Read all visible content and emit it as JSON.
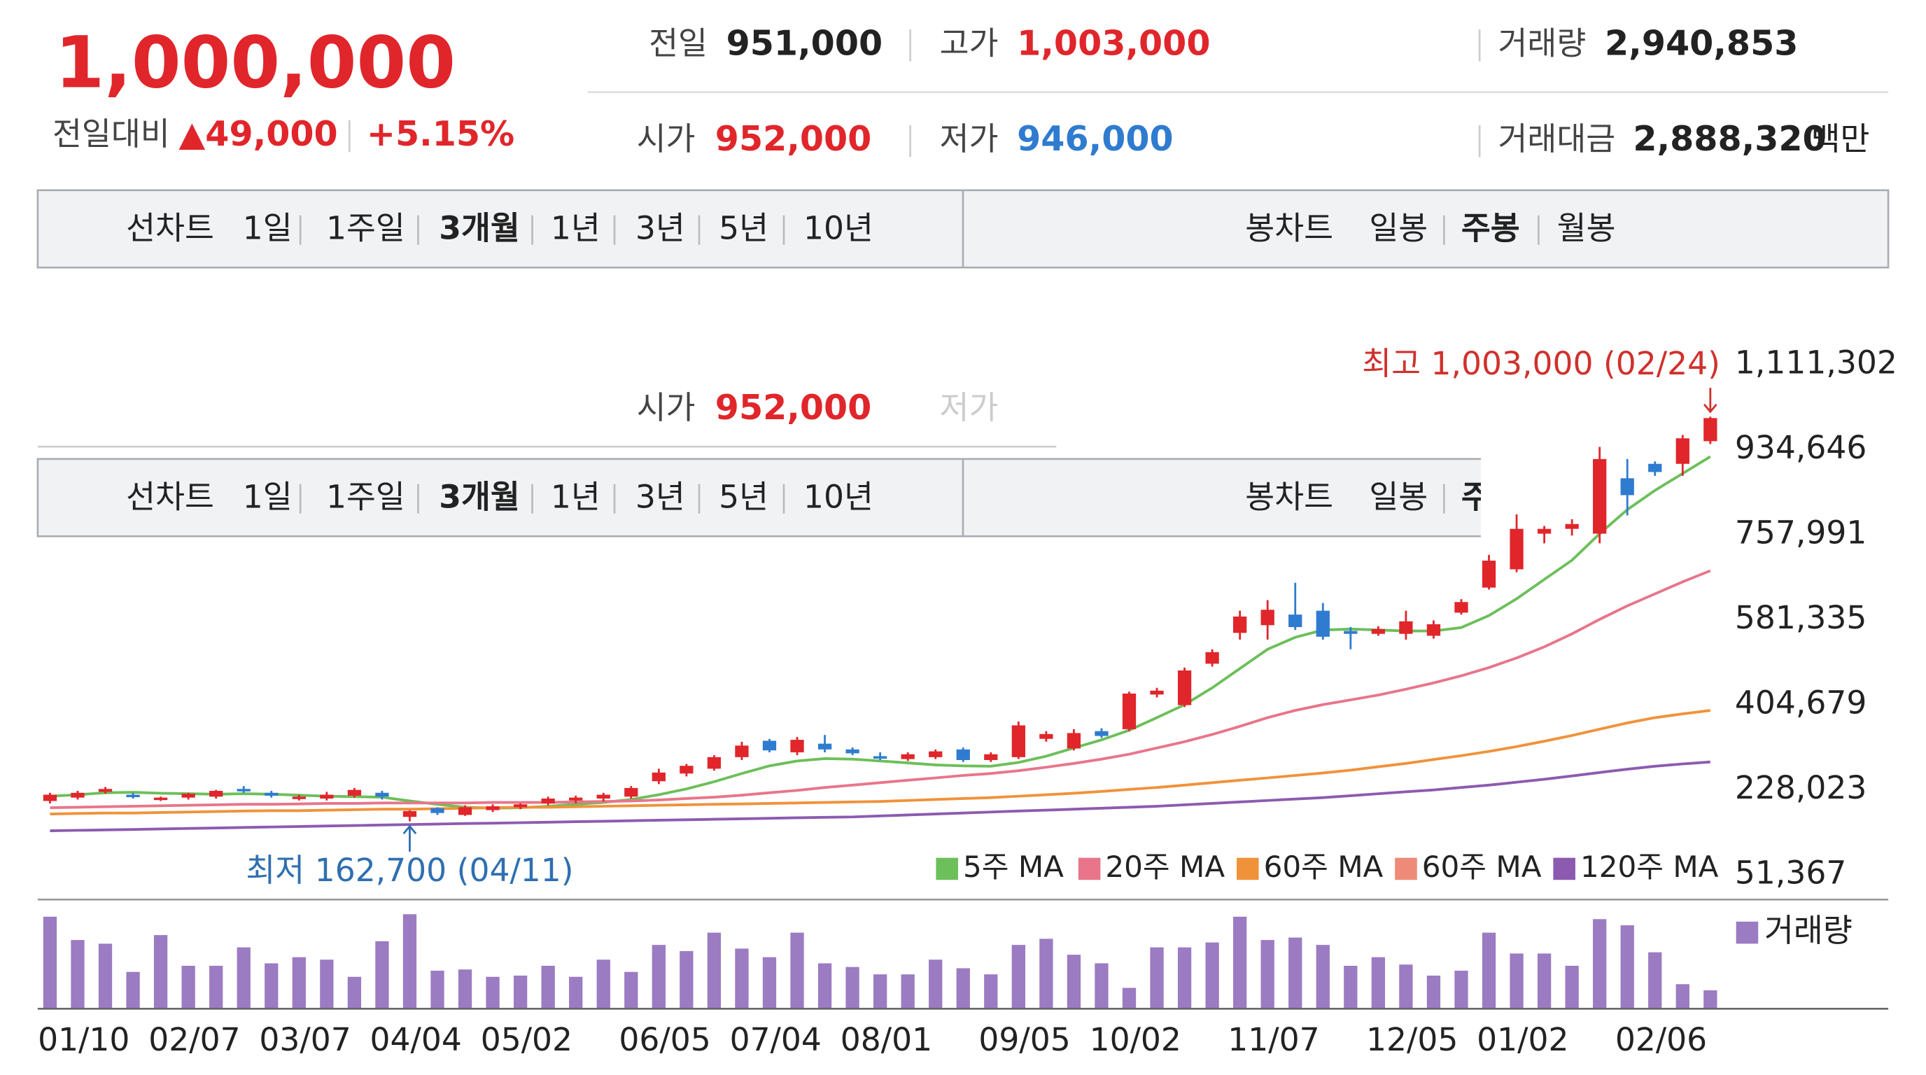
{
  "quote": {
    "price": "1,000,000",
    "change_label": "전일대비",
    "change": "▲49,000",
    "change_pct": "+5.15%"
  },
  "summary": [
    {
      "label": "전일",
      "value": "951,000"
    },
    {
      "label": "고가",
      "value": "1,003,000"
    },
    {
      "label": "거래량",
      "value": "2,940,853"
    },
    {
      "label": "시가",
      "value": "952,000"
    },
    {
      "label": "저가",
      "value": "946,000"
    },
    {
      "label": "거래대금",
      "value": "2,888,320",
      "unit": "백만"
    }
  ],
  "tabs": {
    "line": [
      "선차트",
      "1일",
      "1주일",
      "3개월",
      "1년",
      "3년",
      "5년",
      "10년"
    ],
    "candle": [
      "봉차트",
      "일봉",
      "주봉",
      "월봉"
    ]
  },
  "chart_data": {
    "type": "candlestick",
    "categories": [
      null,
      "01/10",
      null,
      null,
      null,
      "02/07",
      null,
      null,
      null,
      "03/07",
      null,
      null,
      null,
      "04/04",
      null,
      null,
      null,
      "05/02",
      null,
      null,
      null,
      null,
      "06/05",
      null,
      null,
      null,
      "07/04",
      null,
      null,
      null,
      "08/01",
      null,
      null,
      null,
      null,
      "09/05",
      null,
      null,
      null,
      "10/02",
      null,
      null,
      null,
      null,
      "11/07",
      null,
      null,
      null,
      null,
      "12/05",
      null,
      null,
      null,
      "01/02",
      null,
      null,
      null,
      null,
      "02/06",
      null,
      null
    ],
    "open": [
      205000,
      212000,
      224000,
      218000,
      208000,
      212000,
      214000,
      230000,
      222000,
      210000,
      210000,
      216000,
      222000,
      172000,
      190000,
      176000,
      186000,
      192000,
      200000,
      206000,
      210000,
      214000,
      246000,
      262000,
      272000,
      296000,
      330000,
      306000,
      324000,
      312000,
      298000,
      292000,
      296000,
      312000,
      290000,
      296000,
      334000,
      314000,
      350000,
      354000,
      426000,
      404000,
      490000,
      554000,
      570000,
      592000,
      600000,
      558000,
      552000,
      552000,
      548000,
      596000,
      648000,
      686000,
      760000,
      770000,
      760000,
      875000,
      905000,
      905000,
      952000
    ],
    "high": [
      222000,
      226000,
      234000,
      222000,
      214000,
      222000,
      228000,
      236000,
      226000,
      218000,
      224000,
      232000,
      226000,
      186000,
      192000,
      196000,
      198000,
      200000,
      214000,
      216000,
      222000,
      236000,
      272000,
      282000,
      300000,
      328000,
      334000,
      338000,
      342000,
      316000,
      306000,
      306000,
      312000,
      316000,
      306000,
      370000,
      350000,
      354000,
      356000,
      432000,
      440000,
      482000,
      520000,
      600000,
      622000,
      658000,
      616000,
      566000,
      568000,
      600000,
      580000,
      624000,
      716000,
      800000,
      776000,
      790000,
      940000,
      915000,
      910000,
      965000,
      1003000
    ],
    "low": [
      200000,
      208000,
      220000,
      210000,
      205000,
      208000,
      210000,
      222000,
      212000,
      206000,
      206000,
      212000,
      208000,
      162700,
      176000,
      174000,
      182000,
      188000,
      196000,
      200000,
      204000,
      210000,
      240000,
      256000,
      268000,
      290000,
      306000,
      300000,
      306000,
      300000,
      290000,
      288000,
      292000,
      286000,
      286000,
      292000,
      328000,
      310000,
      336000,
      350000,
      420000,
      400000,
      484000,
      540000,
      540000,
      560000,
      540000,
      520000,
      548000,
      540000,
      542000,
      592000,
      644000,
      680000,
      740000,
      756000,
      740000,
      798000,
      880000,
      880000,
      946000
    ],
    "close": [
      218000,
      222000,
      230000,
      214000,
      212000,
      220000,
      226000,
      226000,
      216000,
      214000,
      218000,
      228000,
      214000,
      184000,
      180000,
      192000,
      194000,
      198000,
      210000,
      212000,
      218000,
      232000,
      264000,
      278000,
      296000,
      320000,
      310000,
      332000,
      312000,
      304000,
      294000,
      302000,
      308000,
      290000,
      302000,
      362000,
      344000,
      346000,
      340000,
      428000,
      434000,
      476000,
      514000,
      588000,
      602000,
      566000,
      546000,
      552000,
      562000,
      578000,
      572000,
      618000,
      704000,
      770000,
      770000,
      780000,
      915000,
      840000,
      888000,
      958000,
      1000000
    ],
    "up_color": "#e0262b",
    "down_color": "#2f7bd0",
    "series": [
      {
        "name": "5주 MA",
        "color": "#6cbf5a",
        "values": [
          215000,
          218000,
          222000,
          223000,
          221000,
          220000,
          219000,
          220000,
          219000,
          217000,
          215000,
          214000,
          213000,
          205000,
          198000,
          192000,
          190000,
          191000,
          194000,
          198000,
          202000,
          208000,
          218000,
          230000,
          245000,
          262000,
          278000,
          288000,
          293000,
          292000,
          288000,
          284000,
          280000,
          278000,
          277000,
          285000,
          298000,
          315000,
          332000,
          352000,
          378000,
          405000,
          440000,
          480000,
          520000,
          545000,
          560000,
          562000,
          560000,
          558000,
          558000,
          565000,
          590000,
          625000,
          665000,
          705000,
          760000,
          810000,
          850000,
          885000,
          920000
        ]
      },
      {
        "name": "20주 MA",
        "color": "#e8758a",
        "values": [
          191000,
          192000,
          193000,
          194000,
          195000,
          196000,
          197000,
          198000,
          198000,
          199000,
          200000,
          200000,
          201000,
          201000,
          201000,
          201000,
          202000,
          202000,
          202000,
          203000,
          204000,
          205000,
          207000,
          210000,
          213000,
          217000,
          222000,
          227000,
          233000,
          238000,
          243000,
          248000,
          253000,
          258000,
          262000,
          268000,
          275000,
          283000,
          292000,
          302000,
          315000,
          328000,
          343000,
          360000,
          378000,
          393000,
          405000,
          415000,
          425000,
          437000,
          450000,
          465000,
          482000,
          502000,
          525000,
          552000,
          582000,
          610000,
          635000,
          660000,
          683000
        ]
      },
      {
        "name": "60주 MA",
        "color": "#f0923a",
        "values": [
          178000,
          179000,
          180000,
          180000,
          181000,
          182000,
          183000,
          184000,
          185000,
          185000,
          186000,
          187000,
          188000,
          188000,
          189000,
          190000,
          191000,
          192000,
          192000,
          193000,
          194000,
          195000,
          196000,
          197000,
          198000,
          199000,
          200000,
          201000,
          202000,
          203000,
          204000,
          206000,
          208000,
          210000,
          212000,
          215000,
          218000,
          221000,
          225000,
          229000,
          233000,
          238000,
          243000,
          248000,
          253000,
          258000,
          263000,
          269000,
          276000,
          283000,
          291000,
          299000,
          308000,
          318000,
          329000,
          341000,
          354000,
          367000,
          378000,
          386000,
          393000
        ]
      },
      {
        "name": "60주 MA",
        "color": "#ee8a78"
      },
      {
        "name": "120주 MA",
        "color": "#8c5bb0",
        "values": [
          143000,
          144000,
          145000,
          146000,
          147000,
          148000,
          149000,
          150000,
          151000,
          152000,
          153000,
          154000,
          155000,
          156000,
          157000,
          158000,
          159000,
          160000,
          161000,
          162000,
          163000,
          164000,
          165000,
          166000,
          167000,
          168000,
          169000,
          170000,
          171000,
          172000,
          174000,
          176000,
          178000,
          180000,
          182000,
          184000,
          186000,
          188000,
          190000,
          192000,
          194000,
          197000,
          200000,
          203000,
          206000,
          209000,
          212000,
          216000,
          220000,
          224000,
          228000,
          233000,
          238000,
          244000,
          250000,
          257000,
          264000,
          271000,
          277000,
          282000,
          286000
        ]
      }
    ],
    "ylim": [
      51367,
      1111302
    ],
    "yticks": [
      {
        "value": 1111302,
        "label": "1,111,302"
      },
      {
        "value": 934646,
        "label": "934,646"
      },
      {
        "value": 757991,
        "label": "757,991"
      },
      {
        "value": 581335,
        "label": "581,335"
      },
      {
        "value": 404679,
        "label": "404,679"
      },
      {
        "value": 228023,
        "label": "228,023"
      },
      {
        "value": 51367,
        "label": "51,367"
      }
    ],
    "annotations": {
      "high": "최고 1,003,000 (02/24)",
      "low": "최저 162,700 (04/11)"
    },
    "volume": {
      "name": "거래량",
      "color": "#9b7bc2",
      "values": [
        75,
        56,
        53,
        30,
        60,
        35,
        35,
        50,
        37,
        42,
        40,
        26,
        55,
        77,
        31,
        32,
        26,
        27,
        35,
        26,
        40,
        30,
        52,
        47,
        62,
        49,
        42,
        62,
        37,
        34,
        28,
        28,
        40,
        33,
        28,
        52,
        57,
        44,
        37,
        17,
        50,
        50,
        54,
        75,
        56,
        58,
        52,
        35,
        42,
        36,
        27,
        31,
        62,
        45,
        45,
        35,
        73,
        68,
        46,
        20,
        15
      ]
    }
  }
}
